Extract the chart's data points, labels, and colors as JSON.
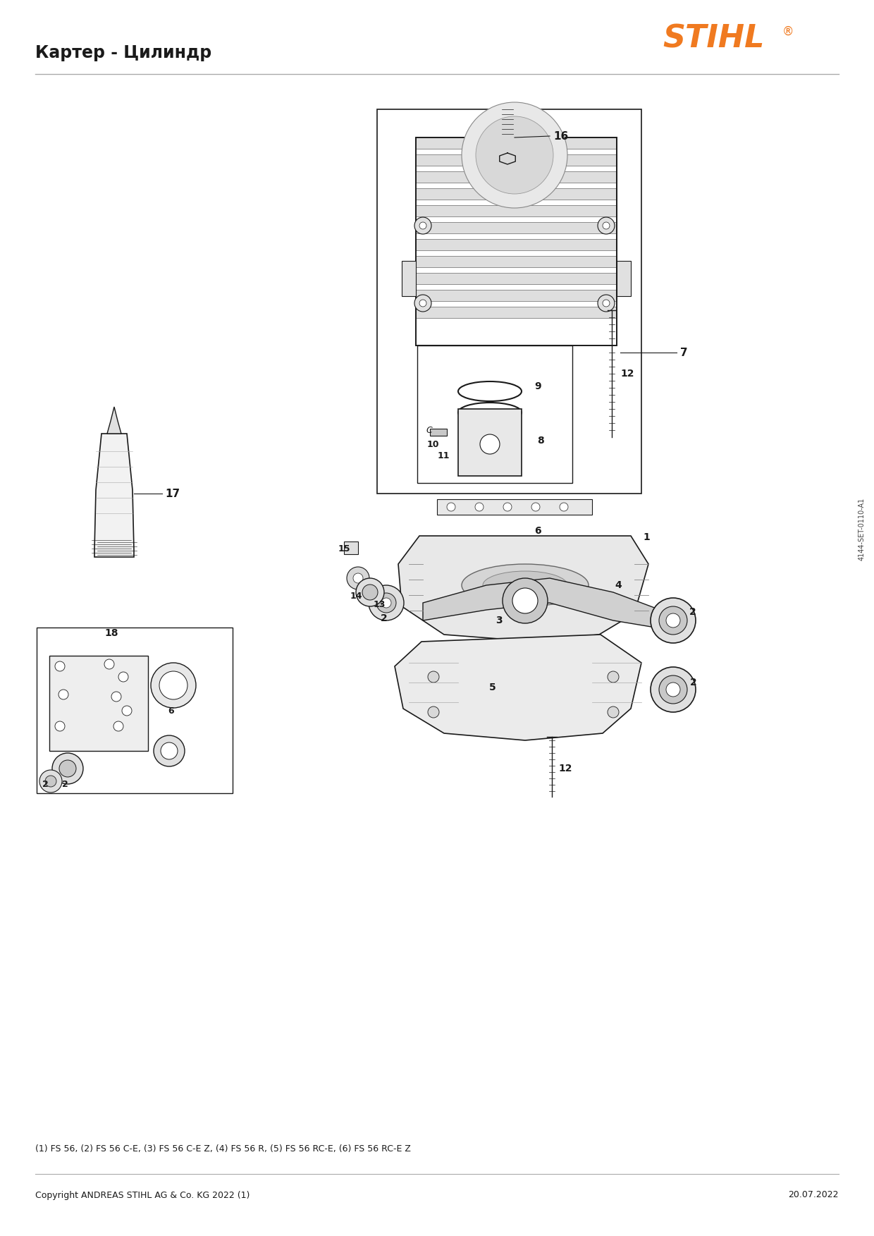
{
  "title": "Картер - Цилиндр",
  "logo_text": "STIHL",
  "logo_color": "#F07A20",
  "footer_left": "Copyright ANDREAS STIHL AG & Co. KG 2022 (1)",
  "footer_right": "20.07.2022",
  "footnote": "(1) FS 56, (2) FS 56 C-E, (3) FS 56 C-E Z, (4) FS 56 R, (5) FS 56 RC-E, (6) FS 56 RC-E Z",
  "diagram_id": "4144-SET-0110-A1",
  "bg_color": "#FFFFFF",
  "line_color": "#1A1A1A",
  "label_color": "#1A1A1A"
}
